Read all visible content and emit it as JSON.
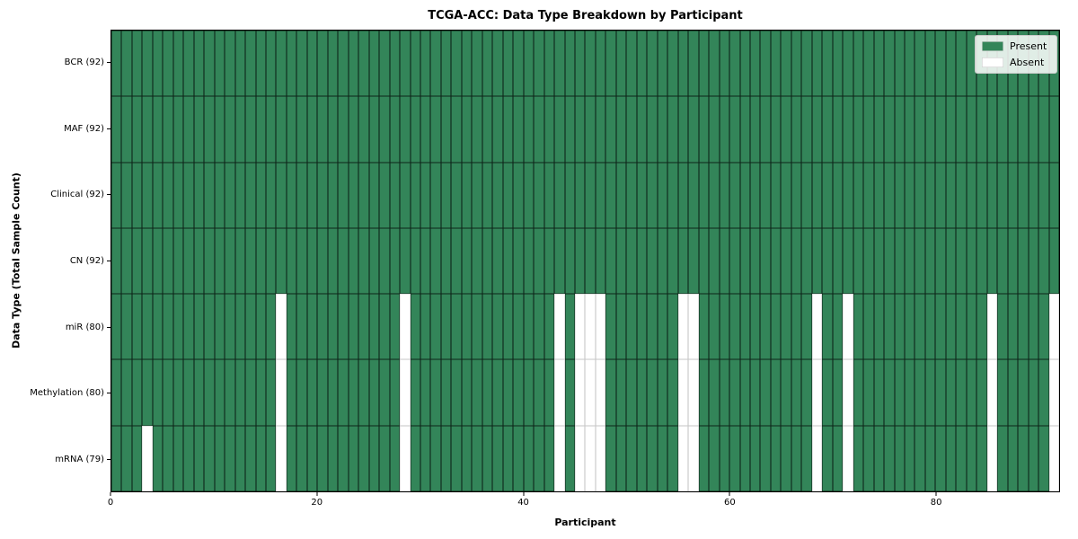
{
  "chart_data": {
    "type": "heatmap",
    "title": "TCGA-ACC: Data Type Breakdown by Participant",
    "xlabel": "Participant",
    "ylabel": "Data Type (Total Sample Count)",
    "n_participants": 92,
    "x_range": [
      0,
      92
    ],
    "x_ticks": [
      0,
      20,
      40,
      60,
      80
    ],
    "grid": "cell-borders",
    "legend_position": "upper right",
    "legend": [
      {
        "label": "Present",
        "color": "#338559"
      },
      {
        "label": "Absent",
        "color": "#ffffff"
      }
    ],
    "colors": {
      "present": "#338559",
      "absent": "#ffffff",
      "cell_edge_on_green": "rgba(0,0,0,0.72)",
      "cell_edge_on_white": "#c6c6c6",
      "axis": "#000000"
    },
    "rows": [
      {
        "label": "BCR (92)",
        "name": "BCR",
        "total": 92,
        "absent_participants": []
      },
      {
        "label": "MAF (92)",
        "name": "MAF",
        "total": 92,
        "absent_participants": []
      },
      {
        "label": "Clinical (92)",
        "name": "Clinical",
        "total": 92,
        "absent_participants": []
      },
      {
        "label": "CN (92)",
        "name": "CN",
        "total": 92,
        "absent_participants": []
      },
      {
        "label": "miR (80)",
        "name": "miR",
        "total": 80,
        "absent_participants": [
          16,
          28,
          43,
          45,
          46,
          47,
          55,
          56,
          68,
          71,
          85,
          91
        ]
      },
      {
        "label": "Methylation (80)",
        "name": "Methylation",
        "total": 80,
        "absent_participants": [
          16,
          28,
          43,
          45,
          46,
          47,
          55,
          56,
          68,
          71,
          85,
          91
        ]
      },
      {
        "label": "mRNA (79)",
        "name": "mRNA",
        "total": 79,
        "absent_participants": [
          3,
          16,
          28,
          43,
          45,
          46,
          47,
          55,
          56,
          68,
          71,
          85,
          91
        ]
      }
    ]
  }
}
